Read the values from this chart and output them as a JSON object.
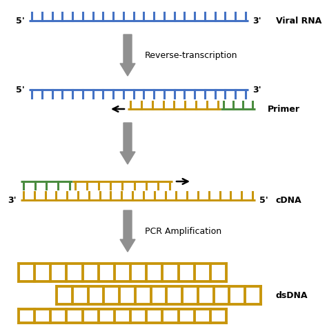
{
  "blue_color": "#4472C4",
  "gold_color": "#C8960C",
  "green_color": "#4A8C3F",
  "background": "#FFFFFF",
  "viral_rna_label": "Viral RNA",
  "rev_trans_label": "Reverse-transcription",
  "primer_label": "Primer",
  "cdna_label": "cDNA",
  "pcr_label": "PCR Amplification",
  "dsdna_label": "dsDNA",
  "label_5prime": "5'",
  "label_3prime": "3'",
  "arrow_color": "#909090",
  "strand_lw": 2.2,
  "tooth_lw": 2.2,
  "dsdna_lw": 2.8
}
